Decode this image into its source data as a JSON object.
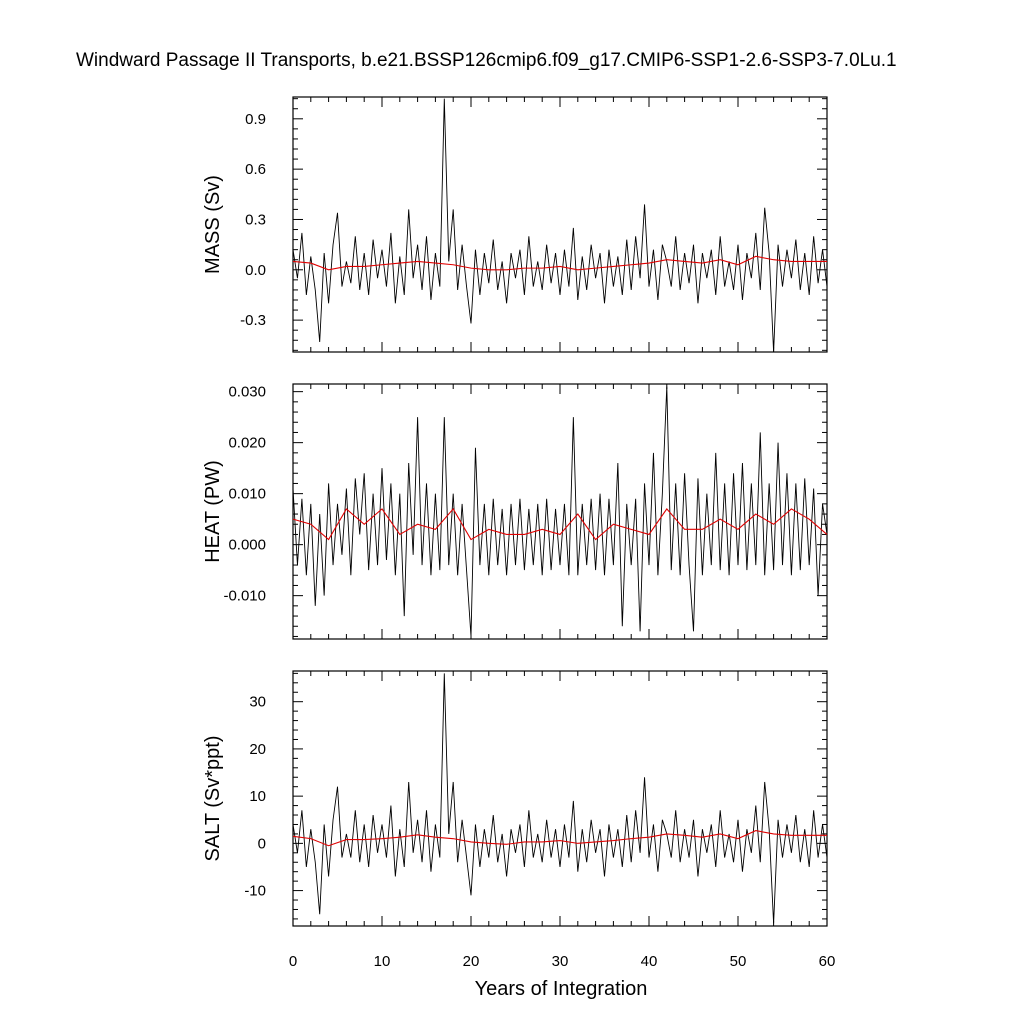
{
  "title": "Windward Passage II Transports, b.e21.BSSP126cmip6.f09_g17.CMIP6-SSP1-2.6-SSP3-7.0Lu.1",
  "xlabel": "Years of Integration",
  "colors": {
    "raw": "#000000",
    "smooth": "#e00000"
  },
  "chart_data": [
    {
      "type": "line",
      "ylabel": "MASS (Sv)",
      "xlim": [
        0,
        60
      ],
      "ylim": [
        -0.49,
        1.03
      ],
      "xticks": [
        "0",
        "10",
        "20",
        "30",
        "40",
        "50",
        "60"
      ],
      "yticks": [
        -0.3,
        0.0,
        0.3,
        0.6,
        0.9
      ],
      "ytick_labels": [
        "-0.3",
        "0.0",
        "0.3",
        "0.6",
        "0.9"
      ],
      "series": [
        {
          "style": "raw",
          "x": [
            0,
            0.5,
            1,
            1.5,
            2,
            2.5,
            3,
            3.5,
            4,
            4.5,
            5,
            5.5,
            6,
            6.5,
            7,
            7.5,
            8,
            8.5,
            9,
            9.5,
            10,
            10.5,
            11,
            11.5,
            12,
            12.5,
            13,
            13.5,
            14,
            14.5,
            15,
            15.5,
            16,
            16.5,
            17,
            17.5,
            18,
            18.5,
            19,
            19.5,
            20,
            20.5,
            21,
            21.5,
            22,
            22.5,
            23,
            23.5,
            24,
            24.5,
            25,
            25.5,
            26,
            26.5,
            27,
            27.5,
            28,
            28.5,
            29,
            29.5,
            30,
            30.5,
            31,
            31.5,
            32,
            32.5,
            33,
            33.5,
            34,
            34.5,
            35,
            35.5,
            36,
            36.5,
            37,
            37.5,
            38,
            38.5,
            39,
            39.5,
            40,
            40.5,
            41,
            41.5,
            42,
            42.5,
            43,
            43.5,
            44,
            44.5,
            45,
            45.5,
            46,
            46.5,
            47,
            47.5,
            48,
            48.5,
            49,
            49.5,
            50,
            50.5,
            51,
            51.5,
            52,
            52.5,
            53,
            53.5,
            54,
            54.5,
            55,
            55.5,
            56,
            56.5,
            57,
            57.5,
            58,
            58.5,
            59,
            59.5,
            60
          ],
          "values": [
            0.12,
            -0.05,
            0.22,
            -0.15,
            0.08,
            -0.12,
            -0.43,
            0.1,
            -0.2,
            0.15,
            0.34,
            -0.1,
            0.05,
            -0.08,
            0.2,
            -0.12,
            0.1,
            -0.15,
            0.18,
            -0.05,
            0.12,
            -0.1,
            0.22,
            -0.2,
            0.08,
            -0.15,
            0.36,
            -0.05,
            0.15,
            -0.12,
            0.2,
            -0.18,
            0.1,
            -0.1,
            1.02,
            0.05,
            0.36,
            -0.12,
            0.15,
            -0.1,
            -0.32,
            0.12,
            -0.15,
            0.1,
            -0.08,
            0.18,
            -0.12,
            0.05,
            -0.2,
            0.1,
            -0.05,
            0.12,
            -0.15,
            0.2,
            -0.1,
            0.05,
            -0.12,
            0.15,
            -0.08,
            0.1,
            -0.15,
            0.12,
            -0.1,
            0.25,
            -0.18,
            0.08,
            -0.12,
            0.15,
            -0.05,
            0.1,
            -0.2,
            0.12,
            -0.1,
            0.08,
            -0.15,
            0.18,
            -0.12,
            0.2,
            -0.05,
            0.39,
            -0.1,
            0.12,
            -0.18,
            0.15,
            0.05,
            -0.1,
            0.2,
            -0.12,
            0.1,
            -0.08,
            0.15,
            -0.2,
            0.1,
            -0.05,
            0.12,
            -0.15,
            0.2,
            -0.1,
            0.05,
            -0.12,
            0.15,
            -0.18,
            0.1,
            -0.05,
            0.22,
            -0.12,
            0.37,
            0.1,
            -0.49,
            0.15,
            -0.1,
            0.12,
            -0.05,
            0.18,
            -0.12,
            0.1,
            -0.15,
            0.2,
            -0.08,
            0.12,
            -0.1
          ]
        },
        {
          "style": "smooth",
          "x": [
            0,
            2,
            4,
            6,
            8,
            10,
            12,
            14,
            16,
            18,
            20,
            22,
            24,
            26,
            28,
            30,
            32,
            34,
            36,
            38,
            40,
            42,
            44,
            46,
            48,
            50,
            52,
            54,
            56,
            58,
            60
          ],
          "values": [
            0.05,
            0.04,
            0.0,
            0.02,
            0.02,
            0.03,
            0.04,
            0.05,
            0.04,
            0.03,
            0.01,
            0.0,
            0.0,
            0.01,
            0.01,
            0.02,
            0.0,
            0.01,
            0.02,
            0.03,
            0.04,
            0.06,
            0.05,
            0.04,
            0.06,
            0.03,
            0.08,
            0.06,
            0.05,
            0.05,
            0.05
          ]
        }
      ]
    },
    {
      "type": "line",
      "ylabel": "HEAT (PW)",
      "xlim": [
        0,
        60
      ],
      "ylim": [
        -0.0185,
        0.0315
      ],
      "xticks": [
        "0",
        "10",
        "20",
        "30",
        "40",
        "50",
        "60"
      ],
      "yticks": [
        -0.01,
        0.0,
        0.01,
        0.02,
        0.03
      ],
      "ytick_labels": [
        "-0.010",
        "0.000",
        "0.010",
        "0.020",
        "0.030"
      ],
      "series": [
        {
          "style": "raw",
          "x": [
            0,
            0.5,
            1,
            1.5,
            2,
            2.5,
            3,
            3.5,
            4,
            4.5,
            5,
            5.5,
            6,
            6.5,
            7,
            7.5,
            8,
            8.5,
            9,
            9.5,
            10,
            10.5,
            11,
            11.5,
            12,
            12.5,
            13,
            13.5,
            14,
            14.5,
            15,
            15.5,
            16,
            16.5,
            17,
            17.5,
            18,
            18.5,
            19,
            19.5,
            20,
            20.5,
            21,
            21.5,
            22,
            22.5,
            23,
            23.5,
            24,
            24.5,
            25,
            25.5,
            26,
            26.5,
            27,
            27.5,
            28,
            28.5,
            29,
            29.5,
            30,
            30.5,
            31,
            31.5,
            32,
            32.5,
            33,
            33.5,
            34,
            34.5,
            35,
            35.5,
            36,
            36.5,
            37,
            37.5,
            38,
            38.5,
            39,
            39.5,
            40,
            40.5,
            41,
            41.5,
            42,
            42.5,
            43,
            43.5,
            44,
            44.5,
            45,
            45.5,
            46,
            46.5,
            47,
            47.5,
            48,
            48.5,
            49,
            49.5,
            50,
            50.5,
            51,
            51.5,
            52,
            52.5,
            53,
            53.5,
            54,
            54.5,
            55,
            55.5,
            56,
            56.5,
            57,
            57.5,
            58,
            58.5,
            59,
            59.5,
            60
          ],
          "values": [
            0.011,
            -0.004,
            0.009,
            -0.006,
            0.008,
            -0.012,
            0.006,
            -0.01,
            0.012,
            -0.004,
            0.008,
            -0.002,
            0.011,
            -0.006,
            0.013,
            0.002,
            0.014,
            -0.005,
            0.01,
            -0.004,
            0.015,
            -0.003,
            0.012,
            -0.006,
            0.01,
            -0.014,
            0.016,
            -0.002,
            0.025,
            -0.004,
            0.012,
            -0.006,
            0.01,
            -0.005,
            0.025,
            -0.004,
            0.01,
            -0.006,
            0.008,
            -0.005,
            -0.018,
            0.019,
            -0.004,
            0.008,
            -0.006,
            0.009,
            -0.004,
            0.007,
            -0.006,
            0.008,
            -0.004,
            0.009,
            -0.005,
            0.007,
            -0.004,
            0.008,
            -0.006,
            0.009,
            -0.005,
            0.007,
            -0.004,
            0.008,
            -0.006,
            0.025,
            -0.006,
            0.008,
            -0.004,
            0.009,
            -0.005,
            0.01,
            -0.006,
            0.009,
            -0.004,
            0.016,
            -0.016,
            0.008,
            -0.004,
            0.009,
            -0.017,
            0.012,
            -0.004,
            0.018,
            -0.006,
            0.01,
            0.031,
            -0.005,
            0.012,
            -0.006,
            0.014,
            -0.004,
            -0.017,
            0.013,
            -0.006,
            0.01,
            -0.004,
            0.018,
            -0.005,
            0.012,
            -0.006,
            0.014,
            -0.004,
            0.016,
            -0.005,
            0.012,
            -0.004,
            0.022,
            -0.006,
            0.012,
            -0.005,
            0.02,
            -0.004,
            0.014,
            -0.006,
            0.012,
            -0.005,
            0.013,
            -0.004,
            0.011,
            -0.01,
            0.008,
            0.002
          ]
        },
        {
          "style": "smooth",
          "x": [
            0,
            2,
            4,
            6,
            8,
            10,
            12,
            14,
            16,
            18,
            20,
            22,
            24,
            26,
            28,
            30,
            32,
            34,
            36,
            38,
            40,
            42,
            44,
            46,
            48,
            50,
            52,
            54,
            56,
            58,
            60
          ],
          "values": [
            0.005,
            0.004,
            0.001,
            0.007,
            0.004,
            0.007,
            0.002,
            0.004,
            0.003,
            0.007,
            0.001,
            0.003,
            0.002,
            0.002,
            0.003,
            0.002,
            0.006,
            0.001,
            0.004,
            0.003,
            0.002,
            0.007,
            0.003,
            0.003,
            0.005,
            0.003,
            0.006,
            0.004,
            0.007,
            0.005,
            0.002
          ]
        }
      ]
    },
    {
      "type": "line",
      "ylabel": "SALT (Sv*ppt)",
      "xlim": [
        0,
        60
      ],
      "ylim": [
        -17.5,
        36.5
      ],
      "xticks": [
        "0",
        "10",
        "20",
        "30",
        "40",
        "50",
        "60"
      ],
      "yticks": [
        -10,
        0,
        10,
        20,
        30
      ],
      "ytick_labels": [
        "-10",
        "0",
        "10",
        "20",
        "30"
      ],
      "series": [
        {
          "style": "raw",
          "x": [
            0,
            0.5,
            1,
            1.5,
            2,
            2.5,
            3,
            3.5,
            4,
            4.5,
            5,
            5.5,
            6,
            6.5,
            7,
            7.5,
            8,
            8.5,
            9,
            9.5,
            10,
            10.5,
            11,
            11.5,
            12,
            12.5,
            13,
            13.5,
            14,
            14.5,
            15,
            15.5,
            16,
            16.5,
            17,
            17.5,
            18,
            18.5,
            19,
            19.5,
            20,
            20.5,
            21,
            21.5,
            22,
            22.5,
            23,
            23.5,
            24,
            24.5,
            25,
            25.5,
            26,
            26.5,
            27,
            27.5,
            28,
            28.5,
            29,
            29.5,
            30,
            30.5,
            31,
            31.5,
            32,
            32.5,
            33,
            33.5,
            34,
            34.5,
            35,
            35.5,
            36,
            36.5,
            37,
            37.5,
            38,
            38.5,
            39,
            39.5,
            40,
            40.5,
            41,
            41.5,
            42,
            42.5,
            43,
            43.5,
            44,
            44.5,
            45,
            45.5,
            46,
            46.5,
            47,
            47.5,
            48,
            48.5,
            49,
            49.5,
            50,
            50.5,
            51,
            51.5,
            52,
            52.5,
            53,
            53.5,
            54,
            54.5,
            55,
            55.5,
            56,
            56.5,
            57,
            57.5,
            58,
            58.5,
            59,
            59.5,
            60
          ],
          "values": [
            4,
            -2,
            7,
            -5,
            3,
            -4,
            -15,
            4,
            -7,
            5,
            12,
            -3,
            2,
            -3,
            7,
            -4,
            4,
            -5,
            6,
            -2,
            4,
            -3,
            8,
            -7,
            3,
            -5,
            13,
            -2,
            5,
            -4,
            7,
            -6,
            4,
            -3,
            36,
            2,
            13,
            -4,
            5,
            -3,
            -11,
            4,
            -5,
            3,
            -3,
            6,
            -4,
            2,
            -7,
            3,
            -2,
            4,
            -5,
            7,
            -3,
            2,
            -4,
            5,
            -3,
            3,
            -5,
            4,
            -3,
            9,
            -6,
            3,
            -4,
            5,
            -2,
            3,
            -7,
            4,
            -3,
            3,
            -5,
            6,
            -4,
            7,
            -2,
            14,
            -3,
            4,
            -6,
            5,
            2,
            -3,
            7,
            -4,
            3,
            -3,
            5,
            -7,
            3,
            -2,
            4,
            -5,
            7,
            -3,
            2,
            -4,
            5,
            -6,
            3,
            -2,
            8,
            -4,
            13,
            3,
            -17,
            5,
            -3,
            4,
            -2,
            6,
            -4,
            3,
            -5,
            7,
            -3,
            4,
            -3
          ]
        },
        {
          "style": "smooth",
          "x": [
            0,
            2,
            4,
            6,
            8,
            10,
            12,
            14,
            16,
            18,
            20,
            22,
            24,
            26,
            28,
            30,
            32,
            34,
            36,
            38,
            40,
            42,
            44,
            46,
            48,
            50,
            52,
            54,
            56,
            58,
            60
          ],
          "values": [
            1.5,
            1.0,
            -0.5,
            0.8,
            0.8,
            1.0,
            1.3,
            1.8,
            1.3,
            1.0,
            0.3,
            0.0,
            -0.2,
            0.3,
            0.3,
            0.6,
            0.0,
            0.3,
            0.6,
            1.0,
            1.3,
            2.0,
            1.7,
            1.3,
            2.0,
            1.0,
            2.7,
            2.0,
            1.7,
            1.7,
            1.7
          ]
        }
      ]
    }
  ]
}
